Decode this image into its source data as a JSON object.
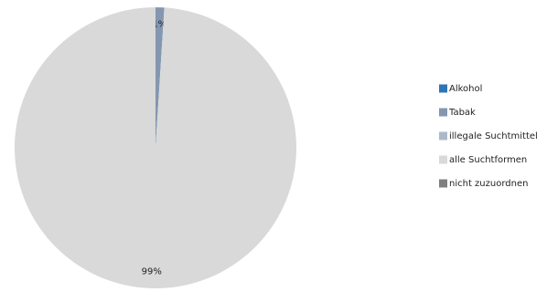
{
  "chart_data": {
    "type": "pie",
    "categories": [
      "Alkohol",
      "Tabak",
      "illegale Suchtmittel",
      "alle Suchtformen",
      "nicht zuzuordnen"
    ],
    "values": [
      0,
      1,
      0,
      99,
      0
    ],
    "value_labels": [
      null,
      "1%",
      null,
      "99%",
      null
    ],
    "colors": [
      "#2e75b6",
      "#8497b0",
      "#adb9ca",
      "#d9d9d9",
      "#7f7f7f"
    ],
    "legend": "right"
  }
}
